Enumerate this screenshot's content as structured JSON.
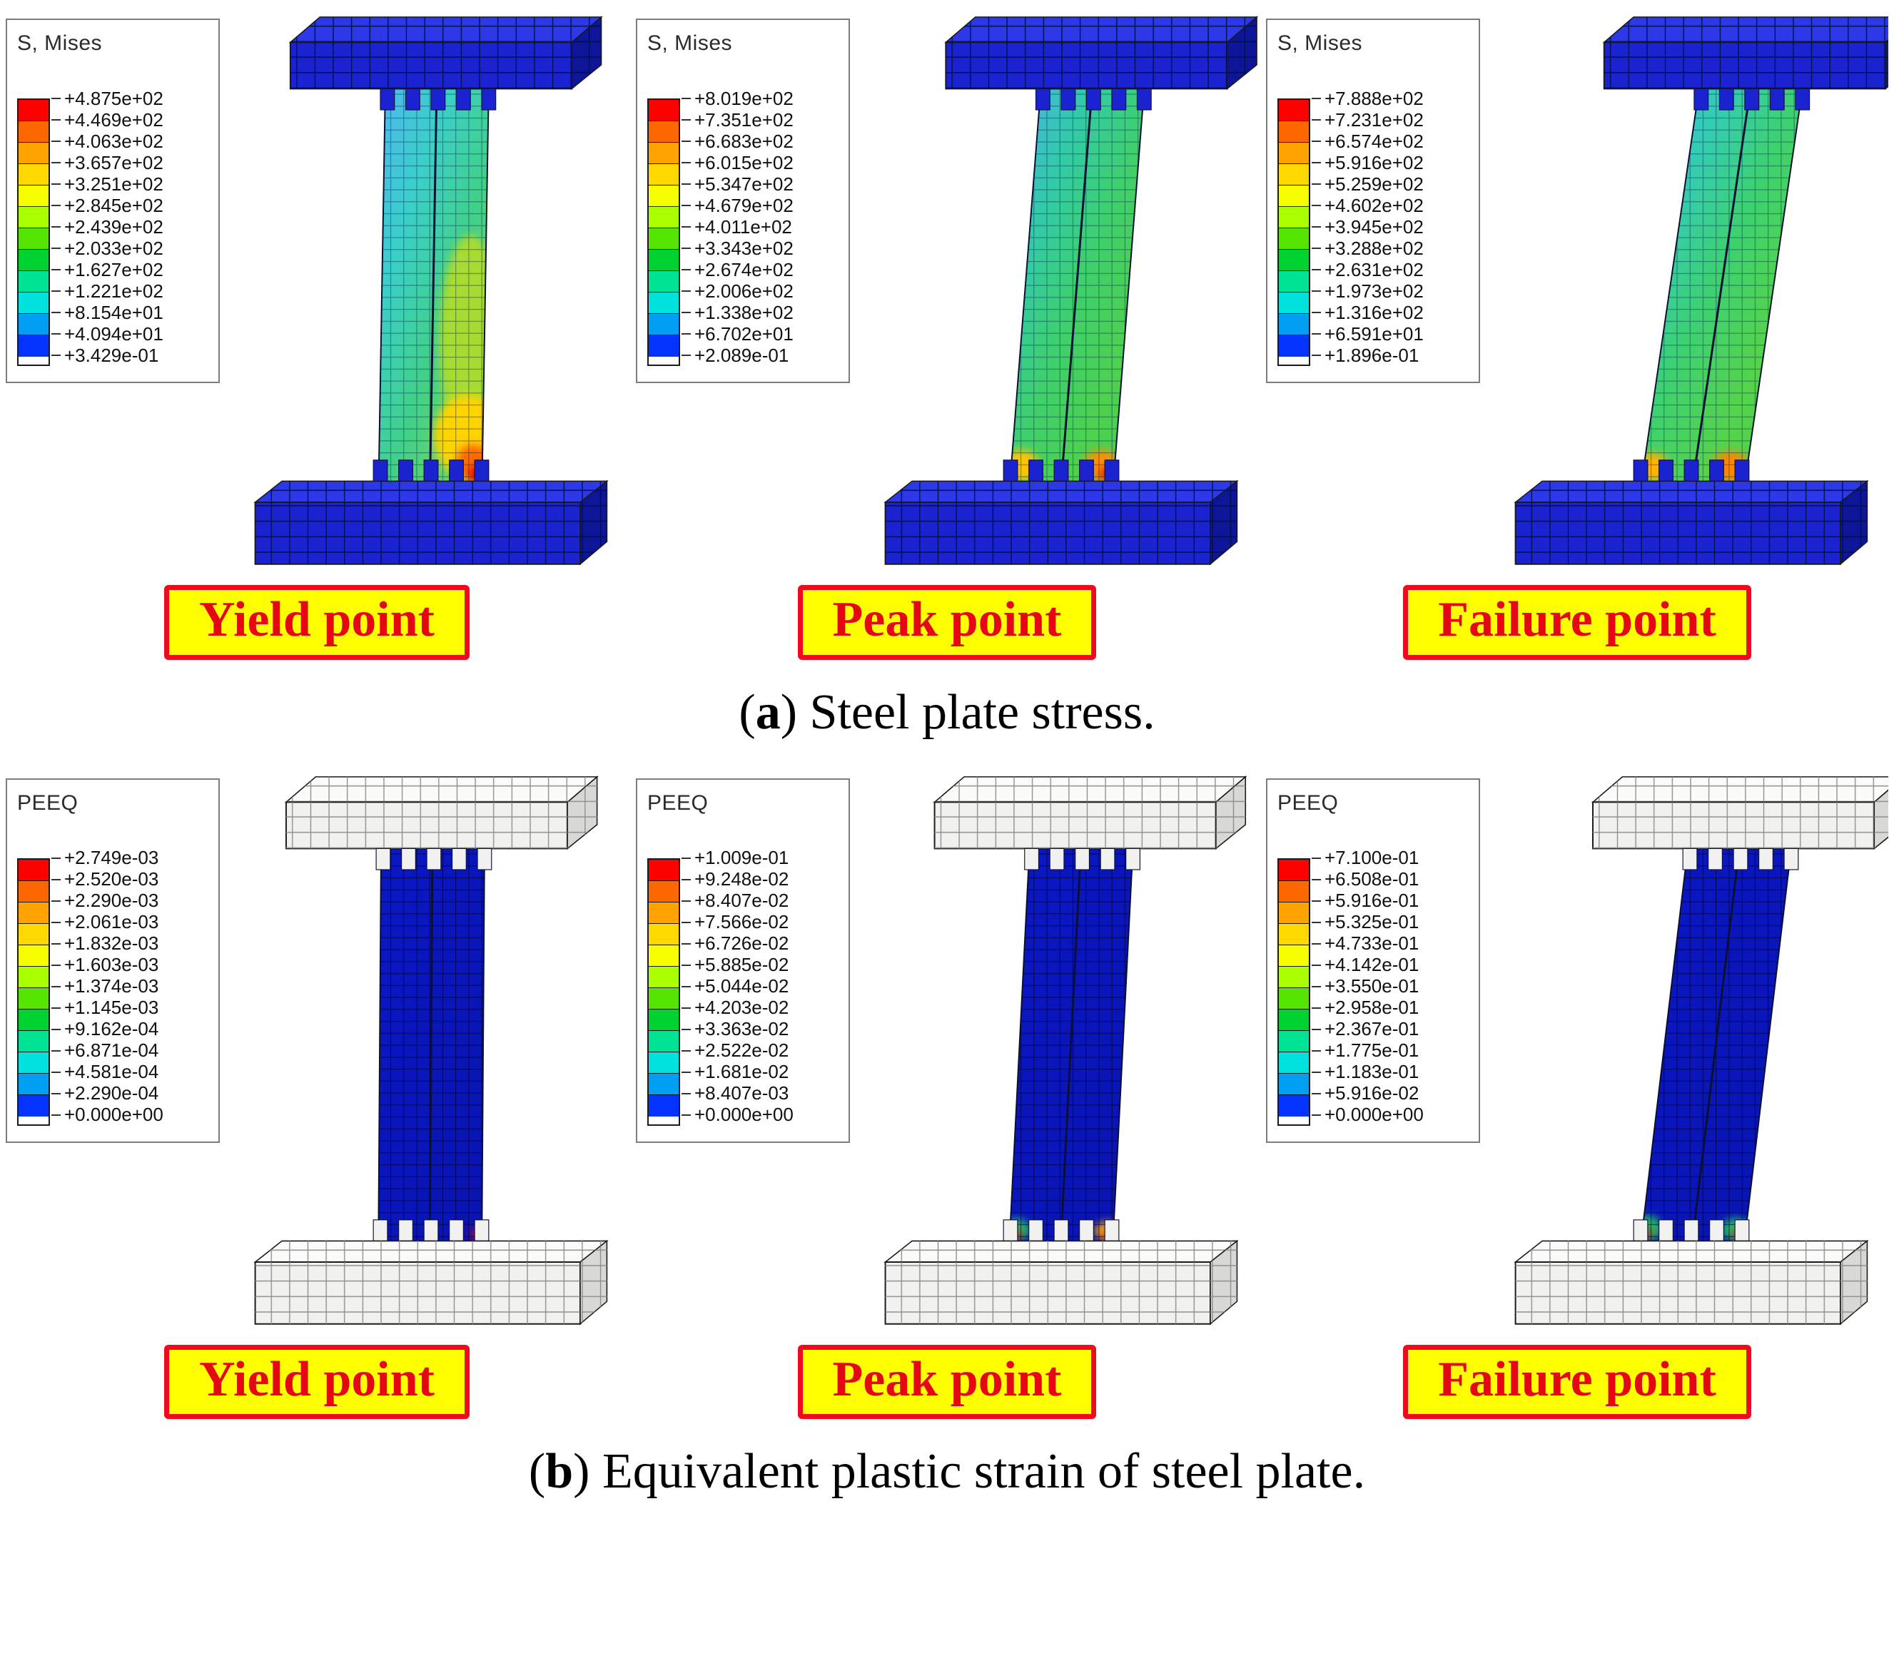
{
  "legend_colors": [
    "#fb0200",
    "#fc6700",
    "#fea300",
    "#fed800",
    "#f6fe00",
    "#aaff00",
    "#56e502",
    "#00d232",
    "#00e394",
    "#01e2de",
    "#019ff4",
    "#0433ff"
  ],
  "sections": [
    {
      "caption_open": "(",
      "caption_letter": "a",
      "caption_rest": ") Steel plate stress.",
      "panels": [
        {
          "legend_title": "S, Mises",
          "label": "Yield point",
          "legend_values": [
            "+4.875e+02",
            "+4.469e+02",
            "+4.063e+02",
            "+3.657e+02",
            "+3.251e+02",
            "+2.845e+02",
            "+2.439e+02",
            "+2.033e+02",
            "+1.627e+02",
            "+1.221e+02",
            "+8.154e+01",
            "+4.094e+01",
            "+3.429e-01"
          ]
        },
        {
          "legend_title": "S, Mises",
          "label": "Peak point",
          "legend_values": [
            "+8.019e+02",
            "+7.351e+02",
            "+6.683e+02",
            "+6.015e+02",
            "+5.347e+02",
            "+4.679e+02",
            "+4.011e+02",
            "+3.343e+02",
            "+2.674e+02",
            "+2.006e+02",
            "+1.338e+02",
            "+6.702e+01",
            "+2.089e-01"
          ]
        },
        {
          "legend_title": "S, Mises",
          "label": "Failure point",
          "legend_values": [
            "+7.888e+02",
            "+7.231e+02",
            "+6.574e+02",
            "+5.916e+02",
            "+5.259e+02",
            "+4.602e+02",
            "+3.945e+02",
            "+3.288e+02",
            "+2.631e+02",
            "+1.973e+02",
            "+1.316e+02",
            "+6.591e+01",
            "+1.896e-01"
          ]
        }
      ]
    },
    {
      "caption_open": "(",
      "caption_letter": "b",
      "caption_rest": ") Equivalent plastic strain of steel plate.",
      "panels": [
        {
          "legend_title": "PEEQ",
          "label": "Yield point",
          "legend_values": [
            "+2.749e-03",
            "+2.520e-03",
            "+2.290e-03",
            "+2.061e-03",
            "+1.832e-03",
            "+1.603e-03",
            "+1.374e-03",
            "+1.145e-03",
            "+9.162e-04",
            "+6.871e-04",
            "+4.581e-04",
            "+2.290e-04",
            "+0.000e+00"
          ]
        },
        {
          "legend_title": "PEEQ",
          "label": "Peak point",
          "legend_values": [
            "+1.009e-01",
            "+9.248e-02",
            "+8.407e-02",
            "+7.566e-02",
            "+6.726e-02",
            "+5.885e-02",
            "+5.044e-02",
            "+4.203e-02",
            "+3.363e-02",
            "+2.522e-02",
            "+1.681e-02",
            "+8.407e-03",
            "+0.000e+00"
          ]
        },
        {
          "legend_title": "PEEQ",
          "label": "Failure point",
          "legend_values": [
            "+7.100e-01",
            "+6.508e-01",
            "+5.916e-01",
            "+5.325e-01",
            "+4.733e-01",
            "+4.142e-01",
            "+3.550e-01",
            "+2.958e-01",
            "+2.367e-01",
            "+1.775e-01",
            "+1.183e-01",
            "+5.916e-02",
            "+0.000e+00"
          ]
        }
      ]
    }
  ]
}
